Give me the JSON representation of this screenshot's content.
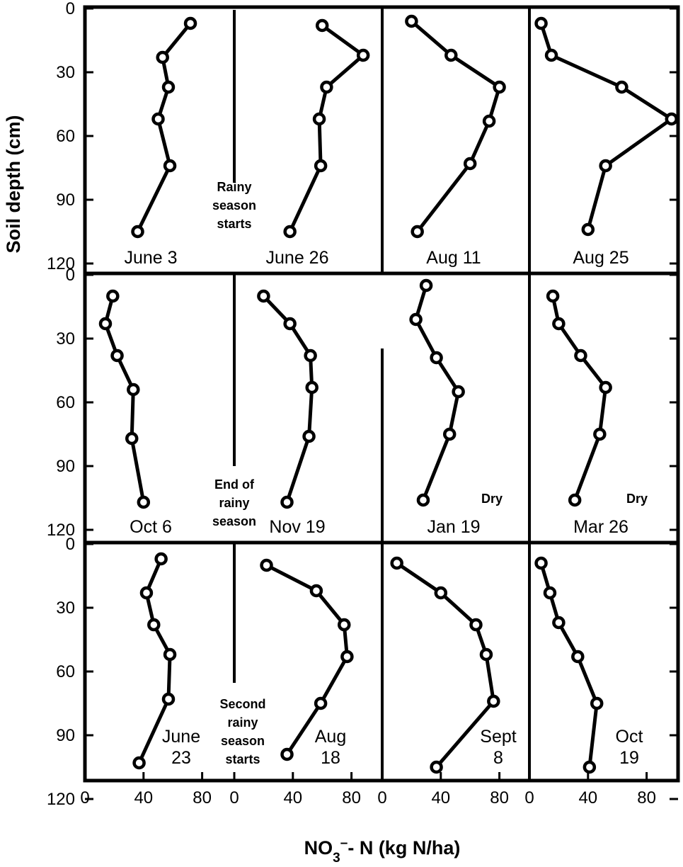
{
  "chart_data": {
    "type": "line",
    "orientation": "profile",
    "xlabel": {
      "main": "NO",
      "sub": "3",
      "sup": "–",
      "rest": "- N (kg N/ha)"
    },
    "ylabel": "Soil depth (cm)",
    "xlim": [
      0,
      100
    ],
    "ylim": [
      0,
      120
    ],
    "x_ticks": [
      "0",
      "40",
      "80"
    ],
    "y_ticks": [
      "0",
      "30",
      "60",
      "90",
      "120"
    ],
    "notes": [
      {
        "id": "rainy-start",
        "lines": [
          "Rainy",
          "season",
          "starts"
        ]
      },
      {
        "id": "rainy-end",
        "lines": [
          "End of",
          "rainy",
          "season"
        ]
      },
      {
        "id": "second-rainy",
        "lines": [
          "Second",
          "rainy",
          "season",
          "starts"
        ]
      }
    ],
    "panels": [
      {
        "label": [
          "June 3"
        ],
        "x": [
          72,
          53,
          57,
          50,
          58,
          36
        ],
        "y": [
          7,
          23,
          37,
          52,
          74,
          105
        ]
      },
      {
        "label": [
          "June 26"
        ],
        "x": [
          60,
          88,
          63,
          58,
          59,
          38
        ],
        "y": [
          8,
          22,
          37,
          52,
          74,
          105
        ]
      },
      {
        "label": [
          "Aug 11"
        ],
        "x": [
          20,
          47,
          80,
          73,
          60,
          24
        ],
        "y": [
          6,
          22,
          37,
          53,
          73,
          105
        ]
      },
      {
        "label": [
          "Aug 25"
        ],
        "x": [
          8,
          15,
          63,
          97,
          52,
          40
        ],
        "y": [
          7,
          22,
          37,
          52,
          74,
          104
        ]
      },
      {
        "label": [
          "Oct 6"
        ],
        "x": [
          19,
          14,
          22,
          33,
          32,
          40
        ],
        "y": [
          10,
          23,
          38,
          54,
          77,
          107
        ]
      },
      {
        "label": [
          "Nov 19"
        ],
        "x": [
          20,
          38,
          52,
          53,
          51,
          36
        ],
        "y": [
          10,
          23,
          38,
          53,
          76,
          107
        ]
      },
      {
        "label": [
          "Jan 19"
        ],
        "x": [
          30,
          23,
          37,
          52,
          46,
          28
        ],
        "y": [
          5,
          21,
          39,
          55,
          75,
          106
        ],
        "note": "Dry"
      },
      {
        "label": [
          "Mar 26"
        ],
        "x": [
          16,
          20,
          35,
          52,
          48,
          31
        ],
        "y": [
          10,
          23,
          38,
          53,
          75,
          106
        ],
        "note": "Dry"
      },
      {
        "label": [
          "June",
          "23"
        ],
        "x": [
          52,
          42,
          47,
          58,
          57,
          37
        ],
        "y": [
          7,
          23,
          38,
          52,
          73,
          103
        ]
      },
      {
        "label": [
          "Aug",
          "18"
        ],
        "x": [
          22,
          56,
          75,
          77,
          59,
          36
        ],
        "y": [
          10,
          22,
          38,
          53,
          75,
          99
        ]
      },
      {
        "label": [
          "Sept",
          "8"
        ],
        "x": [
          10,
          40,
          64,
          71,
          76,
          37
        ],
        "y": [
          9,
          23,
          38,
          52,
          74,
          105
        ]
      },
      {
        "label": [
          "Oct",
          "19"
        ],
        "x": [
          8,
          14,
          20,
          33,
          46,
          41
        ],
        "y": [
          9,
          23,
          37,
          53,
          75,
          105
        ]
      }
    ]
  }
}
